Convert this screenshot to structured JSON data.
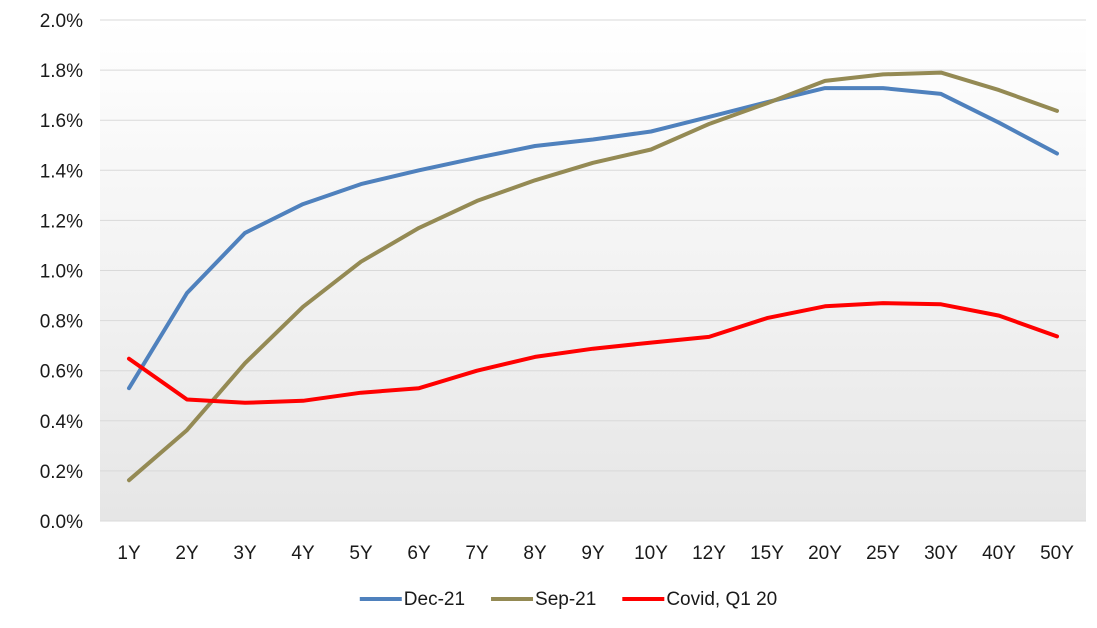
{
  "chart_data": {
    "type": "line",
    "title": "",
    "xlabel": "",
    "ylabel": "",
    "categories": [
      "1Y",
      "2Y",
      "3Y",
      "4Y",
      "5Y",
      "6Y",
      "7Y",
      "8Y",
      "9Y",
      "10Y",
      "12Y",
      "15Y",
      "20Y",
      "25Y",
      "30Y",
      "40Y",
      "50Y"
    ],
    "ylim": [
      0,
      2.0
    ],
    "yticks": [
      "0.0%",
      "0.2%",
      "0.4%",
      "0.6%",
      "0.8%",
      "1.0%",
      "1.2%",
      "1.4%",
      "1.6%",
      "1.8%",
      "2.0%"
    ],
    "ytick_values": [
      0,
      0.2,
      0.4,
      0.6,
      0.8,
      1.0,
      1.2,
      1.4,
      1.6,
      1.8,
      2.0
    ],
    "grid": true,
    "legend_position": "bottom",
    "series": [
      {
        "name": "Dec-21",
        "color": "#4f81bd",
        "values": [
          0.53,
          0.91,
          1.15,
          1.265,
          1.345,
          1.4,
          1.45,
          1.497,
          1.523,
          1.555,
          1.613,
          1.672,
          1.728,
          1.728,
          1.705,
          1.59,
          1.467
        ]
      },
      {
        "name": "Sep-21",
        "color": "#948a54",
        "values": [
          0.163,
          0.363,
          0.63,
          0.855,
          1.035,
          1.17,
          1.278,
          1.36,
          1.43,
          1.483,
          1.585,
          1.668,
          1.757,
          1.783,
          1.79,
          1.72,
          1.637
        ]
      },
      {
        "name": "Covid, Q1 20",
        "color": "#ff0000",
        "values": [
          0.648,
          0.485,
          0.472,
          0.48,
          0.512,
          0.53,
          0.6,
          0.655,
          0.688,
          0.712,
          0.735,
          0.81,
          0.857,
          0.87,
          0.865,
          0.82,
          0.737
        ]
      }
    ]
  }
}
